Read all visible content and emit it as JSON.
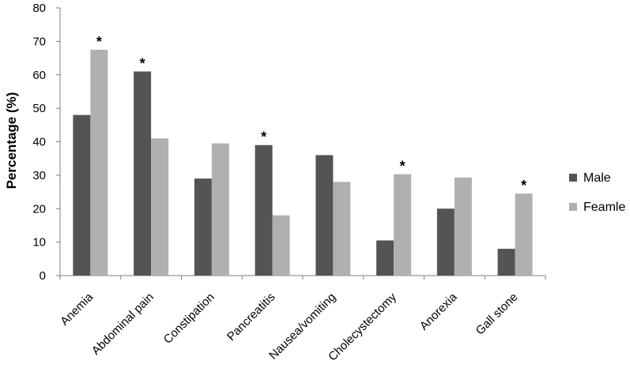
{
  "chart_data": {
    "type": "bar",
    "title": "",
    "xlabel": "",
    "ylabel": "Percentage (%)",
    "ylim": [
      0,
      80
    ],
    "yticks": [
      0,
      10,
      20,
      30,
      40,
      50,
      60,
      70,
      80
    ],
    "grid": false,
    "legend_position": "right",
    "categories": [
      "Anemia",
      "Abdominal pain",
      "Constipation",
      "Pancreatitis",
      "Nausea/vomiting",
      "Cholecystectomy",
      "Anorexia",
      "Gall stone"
    ],
    "series": [
      {
        "name": "Male",
        "color": "#545454",
        "values": [
          48,
          61,
          29,
          39,
          36,
          10.5,
          20,
          8
        ]
      },
      {
        "name": "Feamle",
        "color": "#b0b0b0",
        "values": [
          67.5,
          41,
          39.5,
          18,
          28,
          30.3,
          29.3,
          24.5
        ]
      }
    ],
    "significance": [
      {
        "category_index": 0,
        "series_index": 1,
        "label": "*"
      },
      {
        "category_index": 1,
        "series_index": 0,
        "label": "*"
      },
      {
        "category_index": 3,
        "series_index": 0,
        "label": "*"
      },
      {
        "category_index": 5,
        "series_index": 1,
        "label": "*"
      },
      {
        "category_index": 7,
        "series_index": 1,
        "label": "*"
      }
    ]
  }
}
